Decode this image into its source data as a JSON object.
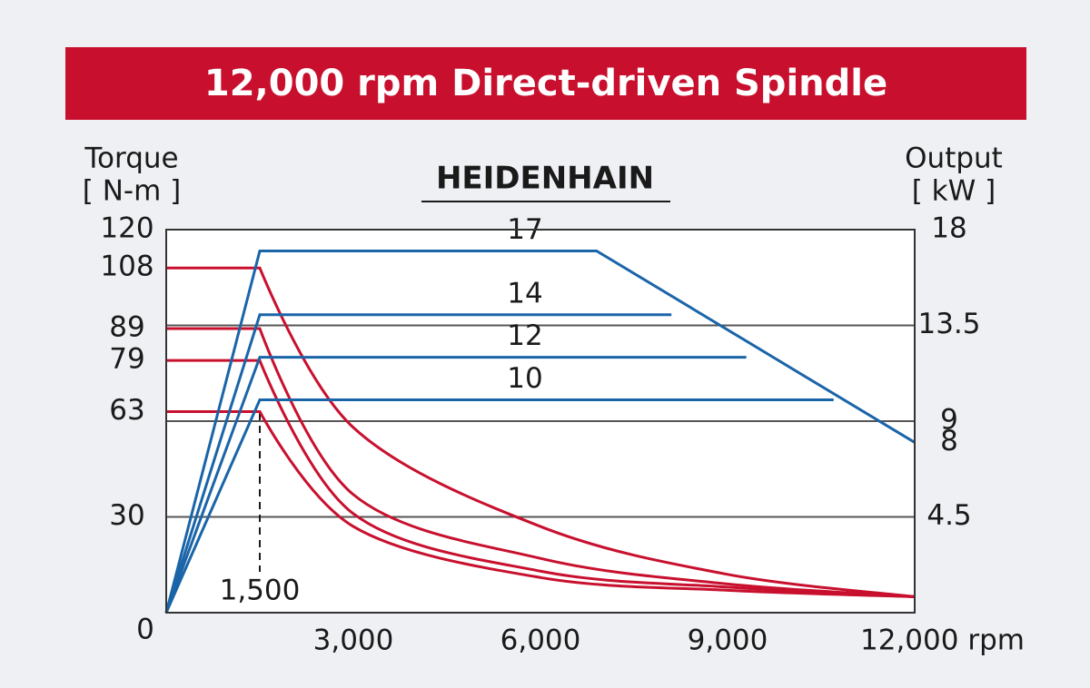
{
  "chart_data": {
    "type": "line",
    "title": "12,000 rpm Direct-driven Spindle",
    "subtitle": "HEIDENHAIN",
    "y_label": [
      "Torque",
      "[ N-m ]"
    ],
    "y2_label": [
      "Output",
      "[ kW ]"
    ],
    "xlim": [
      0,
      12000
    ],
    "xticks": [
      {
        "value": 3000,
        "label": "3,000"
      },
      {
        "value": 6000,
        "label": "6,000"
      },
      {
        "value": 9000,
        "label": "9,000"
      },
      {
        "value": 12000,
        "label": "12,000 rpm"
      }
    ],
    "ylim": [
      0,
      120
    ],
    "yticks": [
      0,
      30,
      63,
      79,
      89,
      108,
      120
    ],
    "y2lim": [
      0,
      18
    ],
    "y2ticks": [
      4.5,
      8,
      9,
      13.5,
      18
    ],
    "y2grid": [
      4.5,
      9,
      13.5
    ],
    "annotations": [
      {
        "x": 1500,
        "label": "1,500"
      }
    ],
    "series": [
      {
        "color": "#c8102e",
        "smooth": true,
        "x": [
          0,
          1500,
          3000,
          6000,
          9000,
          12000
        ],
        "values": [
          108,
          108,
          58,
          27,
          12,
          5
        ]
      },
      {
        "color": "#c8102e",
        "smooth": true,
        "x": [
          0,
          1500,
          3000,
          6000,
          9000,
          12000
        ],
        "values": [
          89,
          89,
          37,
          17,
          9,
          5
        ]
      },
      {
        "color": "#c8102e",
        "smooth": true,
        "x": [
          0,
          1500,
          3000,
          6000,
          9000,
          12000
        ],
        "values": [
          79,
          79,
          31,
          13,
          8,
          5
        ]
      },
      {
        "color": "#c8102e",
        "smooth": true,
        "x": [
          0,
          1500,
          3000,
          6000,
          9000,
          12000
        ],
        "values": [
          63,
          63,
          27,
          11,
          7,
          5
        ]
      },
      {
        "name": "17",
        "color": "#1a64a8",
        "axis": "y2",
        "x": [
          0,
          1500,
          6900,
          12000
        ],
        "values": [
          0,
          17,
          17,
          8
        ]
      },
      {
        "name": "14",
        "color": "#1a64a8",
        "axis": "y2",
        "x": [
          0,
          1500,
          8100
        ],
        "values": [
          0,
          14,
          14
        ]
      },
      {
        "name": "12",
        "color": "#1a64a8",
        "axis": "y2",
        "x": [
          0,
          1500,
          9300
        ],
        "values": [
          0,
          12,
          12
        ]
      },
      {
        "name": "10",
        "color": "#1a64a8",
        "axis": "y2",
        "x": [
          0,
          1500,
          10700
        ],
        "values": [
          0,
          10,
          10
        ]
      }
    ]
  }
}
